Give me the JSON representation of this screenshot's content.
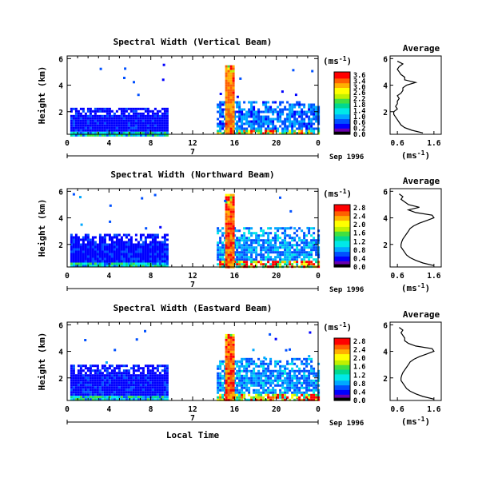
{
  "figure": {
    "xlabel": "Local Time",
    "date_label": "Sep 1996",
    "day_label": "7",
    "ylabel": "Height (km)",
    "cbar_unit_base": "(ms",
    "cbar_unit_exp": "-1",
    "cbar_unit_close": ")",
    "avg_title": "Average",
    "avg_unit_base": "(ms",
    "avg_unit_exp": "-1",
    "avg_unit_close": ")"
  },
  "colors": {
    "scale": [
      "#000000",
      "#6a00b0",
      "#0000ff",
      "#0050ff",
      "#00a8ff",
      "#00e8e8",
      "#00d890",
      "#40e040",
      "#c0f000",
      "#ffff00",
      "#ffb000",
      "#ff6000",
      "#ff0000"
    ]
  },
  "chart_data": [
    {
      "type": "heatmap",
      "title": "Spectral Width (Vertical Beam)",
      "x_ticks": [
        "0",
        "4",
        "8",
        "12",
        "16",
        "20",
        "0"
      ],
      "y_ticks": [
        "6",
        "4",
        "2"
      ],
      "xlim": [
        0,
        24
      ],
      "ylim": [
        0.3,
        6.2
      ],
      "colorbar": {
        "ticks": [
          "3.6",
          "3.4",
          "3.0",
          "2.6",
          "2.2",
          "1.8",
          "1.4",
          "1.0",
          "0.6",
          "0.2",
          "0.0"
        ],
        "range": [
          0,
          3.6
        ]
      },
      "data_blocks": [
        {
          "x": [
            0.3,
            9.7
          ],
          "y": [
            0.3,
            2.3
          ],
          "v": 0.5
        },
        {
          "x": [
            14.3,
            24.0
          ],
          "y": [
            0.3,
            2.8
          ],
          "v": 0.9
        },
        {
          "x": [
            15.1,
            16.0
          ],
          "y": [
            0.3,
            5.5
          ],
          "v": 3.2
        }
      ],
      "average_profile": {
        "title": "Average",
        "x_ticks": [
          "0.6",
          "1.6"
        ],
        "y_ticks": [
          "6",
          "4",
          "2"
        ],
        "xlim": [
          0.4,
          1.8
        ],
        "ylim": [
          0.3,
          6.2
        ],
        "height_km": [
          0.4,
          0.6,
          0.8,
          1.0,
          1.2,
          1.4,
          1.6,
          1.8,
          2.0,
          2.2,
          2.4,
          2.6,
          2.8,
          3.0,
          3.2,
          3.4,
          3.6,
          3.8,
          4.0,
          4.2,
          4.4,
          4.6,
          4.8,
          5.0,
          5.2,
          5.4,
          5.6,
          5.8
        ],
        "width_ms": [
          1.3,
          1.0,
          0.8,
          0.7,
          0.65,
          0.6,
          0.55,
          0.5,
          0.5,
          0.6,
          0.55,
          0.6,
          0.6,
          0.65,
          0.6,
          0.7,
          0.75,
          0.75,
          0.85,
          1.1,
          0.8,
          0.8,
          0.7,
          0.65,
          0.6,
          0.65,
          0.75,
          0.6
        ]
      }
    },
    {
      "type": "heatmap",
      "title": "Spectral Width (Northward Beam)",
      "x_ticks": [
        "0",
        "4",
        "8",
        "12",
        "16",
        "20",
        "0"
      ],
      "y_ticks": [
        "6",
        "4",
        "2"
      ],
      "xlim": [
        0,
        24
      ],
      "ylim": [
        0.3,
        6.2
      ],
      "colorbar": {
        "ticks": [
          "2.8",
          "2.4",
          "2.0",
          "1.6",
          "1.2",
          "0.8",
          "0.4",
          "0.0"
        ],
        "range": [
          0,
          2.8
        ]
      },
      "data_blocks": [
        {
          "x": [
            0.3,
            9.7
          ],
          "y": [
            0.3,
            2.8
          ],
          "v": 0.4
        },
        {
          "x": [
            14.3,
            24.0
          ],
          "y": [
            0.3,
            3.3
          ],
          "v": 0.8
        },
        {
          "x": [
            15.1,
            16.0
          ],
          "y": [
            0.3,
            5.8
          ],
          "v": 2.6
        }
      ],
      "average_profile": {
        "title": "Average",
        "x_ticks": [
          "0.6",
          "1.6"
        ],
        "y_ticks": [
          "6",
          "4",
          "2"
        ],
        "xlim": [
          0.4,
          1.8
        ],
        "ylim": [
          0.3,
          6.2
        ],
        "height_km": [
          0.4,
          0.6,
          0.8,
          1.0,
          1.2,
          1.4,
          1.6,
          1.8,
          2.0,
          2.2,
          2.4,
          2.6,
          2.8,
          3.0,
          3.2,
          3.4,
          3.6,
          3.8,
          4.0,
          4.2,
          4.4,
          4.6,
          4.8,
          5.0,
          5.2,
          5.4,
          5.6,
          5.8
        ],
        "width_ms": [
          1.6,
          1.3,
          1.1,
          0.95,
          0.85,
          0.8,
          0.75,
          0.7,
          0.7,
          0.72,
          0.75,
          0.8,
          0.85,
          0.9,
          0.95,
          1.05,
          1.2,
          1.4,
          1.6,
          1.55,
          1.1,
          0.9,
          1.2,
          0.9,
          0.8,
          0.7,
          0.75,
          0.65
        ]
      }
    },
    {
      "type": "heatmap",
      "title": "Spectral Width (Eastward Beam)",
      "x_ticks": [
        "0",
        "4",
        "8",
        "12",
        "16",
        "20",
        "0"
      ],
      "y_ticks": [
        "6",
        "4",
        "2"
      ],
      "xlim": [
        0,
        24
      ],
      "ylim": [
        0.3,
        6.2
      ],
      "colorbar": {
        "ticks": [
          "2.8",
          "2.4",
          "2.0",
          "1.6",
          "1.2",
          "0.8",
          "0.4",
          "0.0"
        ],
        "range": [
          0,
          2.8
        ]
      },
      "data_blocks": [
        {
          "x": [
            0.3,
            9.7
          ],
          "y": [
            0.3,
            3.0
          ],
          "v": 0.4
        },
        {
          "x": [
            14.3,
            24.0
          ],
          "y": [
            0.3,
            3.5
          ],
          "v": 0.8
        },
        {
          "x": [
            15.1,
            16.0
          ],
          "y": [
            0.3,
            5.3
          ],
          "v": 2.6
        }
      ],
      "average_profile": {
        "title": "Average",
        "x_ticks": [
          "0.6",
          "1.6"
        ],
        "y_ticks": [
          "6",
          "4",
          "2"
        ],
        "xlim": [
          0.4,
          1.8
        ],
        "ylim": [
          0.3,
          6.2
        ],
        "height_km": [
          0.4,
          0.6,
          0.8,
          1.0,
          1.2,
          1.4,
          1.6,
          1.8,
          2.0,
          2.2,
          2.4,
          2.6,
          2.8,
          3.0,
          3.2,
          3.4,
          3.6,
          3.8,
          4.0,
          4.2,
          4.4,
          4.6,
          4.8,
          5.0,
          5.2,
          5.4,
          5.6,
          5.8
        ],
        "width_ms": [
          1.6,
          1.3,
          1.1,
          0.95,
          0.85,
          0.8,
          0.75,
          0.7,
          0.7,
          0.72,
          0.75,
          0.8,
          0.85,
          0.9,
          0.95,
          1.05,
          1.2,
          1.4,
          1.6,
          1.55,
          1.1,
          0.9,
          0.8,
          0.8,
          0.75,
          0.7,
          0.75,
          0.65
        ]
      }
    }
  ]
}
